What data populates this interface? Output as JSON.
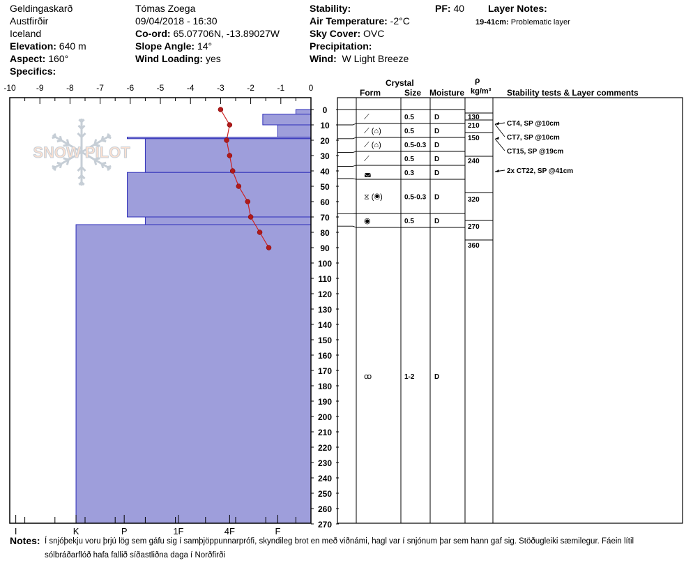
{
  "header": {
    "location": "Geldingaskarð",
    "region": "Austfirðir",
    "country": "Iceland",
    "elevation_label": "Elevation:",
    "elevation_value": "640 m",
    "aspect_label": "Aspect:",
    "aspect_value": "160°",
    "specifics_label": "Specifics:",
    "observer": "Tómas Zoega",
    "datetime": "09/04/2018 - 16:30",
    "coord_label": "Co-ord:",
    "coord_value": "65.07706N, -13.89027W",
    "slope_label": "Slope Angle:",
    "slope_value": "14°",
    "wind_loading_label": "Wind Loading:",
    "wind_loading_value": "yes",
    "stability_label": "Stability:",
    "air_temp_label": "Air Temperature:",
    "air_temp_value": "-2°C",
    "sky_label": "Sky Cover:",
    "sky_value": "OVC",
    "precip_label": "Precipitation:",
    "wind_label": "Wind:",
    "wind_value": "W Light Breeze",
    "pf_label": "PF:",
    "pf_value": "40",
    "layer_notes_label": "Layer Notes:",
    "layer_note_range": "19-41cm:",
    "layer_note_text": "Problematic layer"
  },
  "table_headers": {
    "crystal": "Crystal",
    "form": "Form",
    "size": "Size",
    "moisture": "Moisture",
    "rho": "ρ",
    "density_unit": "kg/m³",
    "stability": "Stability tests & Layer comments"
  },
  "watermark": "SNOW PILOT",
  "notes": {
    "label": "Notes:",
    "line1": "Í snjóþekju voru þrjú lög sem gáfu sig í samþjöppunnarprófi, skyndileg brot en með viðnámi, hagl var í snjónum þar sem hann gaf sig. Stöðugleiki sæmilegur. Fáein lítil",
    "line2": "sólbráðarflóð hafa fallið síðastliðna daga í Norðfirði"
  },
  "chart_data": {
    "type": "snow_profile",
    "temperature_axis": {
      "ticks": [
        -10,
        -9,
        -8,
        -7,
        -6,
        -5,
        -4,
        -3,
        -2,
        -1,
        0
      ]
    },
    "hardness_axis": {
      "labels": [
        "I",
        "K",
        "P",
        "1F",
        "4F",
        "F"
      ]
    },
    "depth_axis": {
      "ylim": [
        0,
        270
      ],
      "step": 10
    },
    "temperature_profile": [
      {
        "depth": 0,
        "temp": -3.0
      },
      {
        "depth": 10,
        "temp": -2.7
      },
      {
        "depth": 20,
        "temp": -2.8
      },
      {
        "depth": 30,
        "temp": -2.7
      },
      {
        "depth": 40,
        "temp": -2.6
      },
      {
        "depth": 50,
        "temp": -2.4
      },
      {
        "depth": 60,
        "temp": -2.1
      },
      {
        "depth": 70,
        "temp": -2.0
      },
      {
        "depth": 80,
        "temp": -1.7
      },
      {
        "depth": 90,
        "temp": -1.4
      }
    ],
    "hardness_layers": [
      {
        "top": 0,
        "bottom": 3,
        "hardness": -0.5
      },
      {
        "top": 3,
        "bottom": 10,
        "hardness": -1.6
      },
      {
        "top": 10,
        "bottom": 18,
        "hardness": -1.1
      },
      {
        "top": 18,
        "bottom": 19,
        "hardness": -6.1
      },
      {
        "top": 19,
        "bottom": 41,
        "hardness": -5.5
      },
      {
        "top": 41,
        "bottom": 70,
        "hardness": -6.1
      },
      {
        "top": 70,
        "bottom": 75,
        "hardness": -5.5
      },
      {
        "top": 75,
        "bottom": 270,
        "hardness": -7.8
      }
    ],
    "layers": [
      {
        "top": 0,
        "bottom": 10,
        "form": "⟋",
        "size": "0.5",
        "moisture": "D"
      },
      {
        "top": 10,
        "bottom": 19,
        "form": "⟋ (⌂)",
        "size": "0.5",
        "moisture": "D"
      },
      {
        "top": 19,
        "bottom": 28,
        "form": "⟋ (⌂)",
        "size": "0.5-0.3",
        "moisture": "D"
      },
      {
        "top": 28,
        "bottom": 37,
        "form": "⟋",
        "size": "0.5",
        "moisture": "D"
      },
      {
        "top": 37,
        "bottom": 45,
        "form": "◛",
        "size": "0.3",
        "moisture": "D"
      },
      {
        "top": 45,
        "bottom": 68,
        "form": "⧖ (◉)",
        "size": "0.5-0.3",
        "moisture": "D"
      },
      {
        "top": 68,
        "bottom": 76,
        "form": "◉",
        "size": "0.5",
        "moisture": "D"
      },
      {
        "top": 76,
        "bottom": 270,
        "form": "ꝏ",
        "size": "1-2",
        "moisture": "D"
      }
    ],
    "densities": [
      {
        "depth": 4,
        "value": "130"
      },
      {
        "depth": 10,
        "value": "210"
      },
      {
        "depth": 18,
        "value": "150"
      },
      {
        "depth": 32,
        "value": "240"
      },
      {
        "depth": 57,
        "value": "320"
      },
      {
        "depth": 75,
        "value": "270"
      },
      {
        "depth": 89,
        "value": "360"
      }
    ],
    "stability_tests": [
      {
        "depth": 10,
        "text": "CT4, SP @10cm"
      },
      {
        "depth": 10,
        "text": "CT7, SP @10cm"
      },
      {
        "depth": 19,
        "text": "CT15, SP @19cm"
      },
      {
        "depth": 41,
        "text": "2x CT22, SP @41cm"
      }
    ]
  }
}
